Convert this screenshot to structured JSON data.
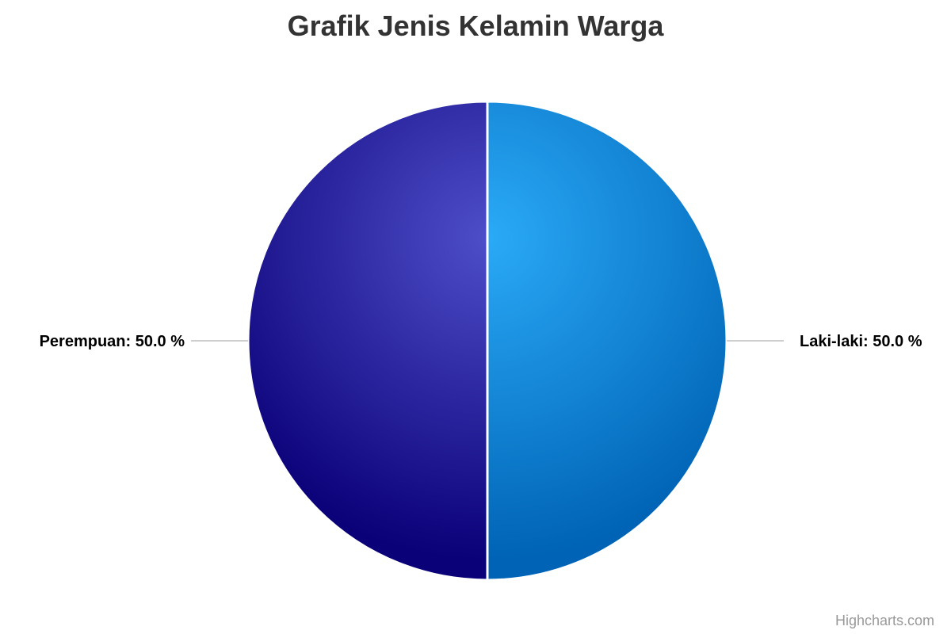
{
  "chart_data": {
    "type": "pie",
    "title": "Grafik Jenis Kelamin Warga",
    "series": [
      {
        "slices": [
          {
            "name": "Laki-laki",
            "value": 50.0,
            "label": "Laki-laki: 50.0 %",
            "color_light": "#2aaaf7",
            "color_dark": "#0063b5"
          },
          {
            "name": "Perempuan",
            "value": 50.0,
            "label": "Perempuan: 50.0 %",
            "color_light": "#4e4ec9",
            "color_dark": "#0a0078"
          }
        ]
      }
    ],
    "legend": "none",
    "data_labels": "outside-with-connectors"
  },
  "credits": {
    "text": "Highcharts.com"
  }
}
